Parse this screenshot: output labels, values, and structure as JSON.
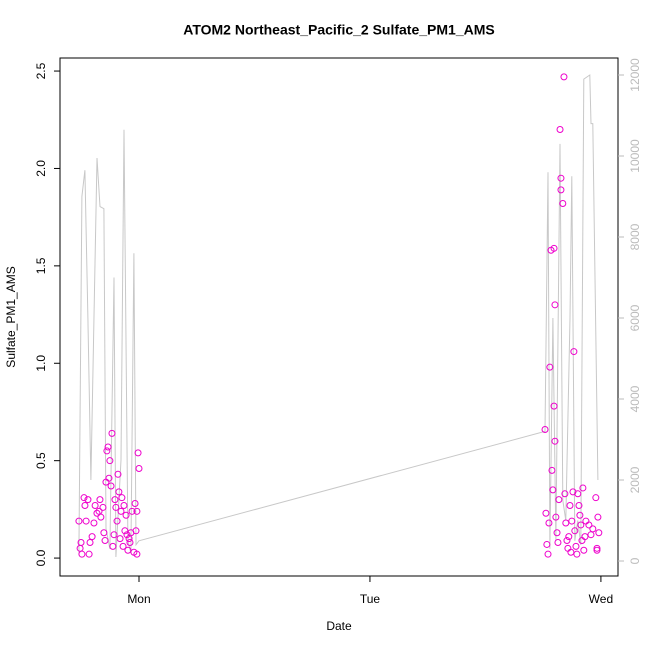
{
  "chart_data": {
    "type": "scatter",
    "title": "ATOM2 Northeast_Pacific_2 Sulfate_PM1_AMS",
    "xlabel": "Date",
    "ylabel": "Sulfate_PM1_AMS",
    "xlim": [
      -0.342,
      2.074
    ],
    "xticks": [
      {
        "value": 0,
        "label": "Mon"
      },
      {
        "value": 1,
        "label": "Tue"
      },
      {
        "value": 2,
        "label": "Wed"
      }
    ],
    "ylim": [
      -0.092,
      2.567
    ],
    "yticks": [
      {
        "value": 0,
        "label": "0.0"
      },
      0.5,
      {
        "value": 1,
        "label": "1.0"
      },
      1.5,
      {
        "value": 2,
        "label": "2.0"
      },
      2.5
    ],
    "y2lim": [
      -370,
      12420
    ],
    "y2ticks": [
      0,
      2000,
      4000,
      6000,
      8000,
      10000,
      12000
    ],
    "series": [
      {
        "type": "line",
        "axis": "y2",
        "color": "#c8c8c8",
        "x": [
          -0.26,
          -0.247,
          -0.234,
          -0.221,
          -0.208,
          -0.182,
          -0.169,
          -0.152,
          -0.143,
          -0.126,
          -0.108,
          -0.1,
          -0.078,
          -0.065,
          -0.048,
          -0.035,
          -0.022,
          -0.013,
          0.0,
          1.758,
          1.771,
          1.779,
          1.792,
          1.805,
          1.823,
          1.835,
          1.848,
          1.866,
          1.874,
          1.887,
          1.9,
          1.913,
          1.926,
          1.952,
          1.957,
          1.965,
          1.987
        ],
        "values": [
          150,
          9000,
          9650,
          6000,
          2000,
          9950,
          8750,
          8700,
          800,
          300,
          7000,
          100,
          2500,
          10650,
          500,
          200,
          7600,
          400,
          500,
          3200,
          9600,
          300,
          6000,
          500,
          10300,
          1500,
          1000,
          6000,
          9500,
          500,
          1000,
          400,
          11900,
          12000,
          10800,
          10800,
          2000
        ]
      },
      {
        "type": "scatter",
        "color": "#ee00cc",
        "x": [
          -0.26,
          -0.255,
          -0.251,
          -0.247,
          -0.238,
          -0.234,
          -0.229,
          -0.221,
          -0.216,
          -0.212,
          -0.203,
          -0.195,
          -0.19,
          -0.182,
          -0.173,
          -0.169,
          -0.165,
          -0.156,
          -0.152,
          -0.147,
          -0.143,
          -0.139,
          -0.134,
          -0.13,
          -0.126,
          -0.121,
          -0.117,
          -0.113,
          -0.108,
          -0.104,
          -0.1,
          -0.095,
          -0.091,
          -0.087,
          -0.082,
          -0.078,
          -0.074,
          -0.069,
          -0.065,
          -0.061,
          -0.056,
          -0.052,
          -0.048,
          -0.043,
          -0.039,
          -0.035,
          -0.03,
          -0.022,
          -0.017,
          -0.013,
          -0.009,
          -0.004,
          0.0,
          -0.009,
          1.758,
          1.762,
          1.766,
          1.771,
          1.775,
          1.779,
          1.784,
          1.788,
          1.792,
          1.797,
          1.801,
          1.797,
          1.801,
          1.805,
          1.81,
          1.814,
          1.818,
          1.823,
          1.827,
          1.827,
          1.835,
          1.84,
          1.844,
          1.848,
          1.853,
          1.857,
          1.861,
          1.866,
          1.87,
          1.874,
          1.879,
          1.883,
          1.887,
          1.892,
          1.896,
          1.9,
          1.905,
          1.909,
          1.913,
          1.922,
          1.935,
          1.948,
          1.957,
          1.965,
          1.978,
          1.983,
          1.987,
          1.991,
          1.983,
          1.926,
          1.918,
          1.931
        ],
        "values": [
          0.19,
          0.05,
          0.08,
          0.02,
          0.31,
          0.27,
          0.19,
          0.3,
          0.02,
          0.08,
          0.11,
          0.18,
          0.27,
          0.23,
          0.24,
          0.3,
          0.21,
          0.26,
          0.13,
          0.09,
          0.39,
          0.55,
          0.57,
          0.41,
          0.5,
          0.37,
          0.64,
          0.06,
          0.12,
          0.3,
          0.26,
          0.19,
          0.43,
          0.34,
          0.1,
          0.24,
          0.31,
          0.06,
          0.27,
          0.14,
          0.22,
          0.12,
          0.04,
          0.1,
          0.08,
          0.13,
          0.24,
          0.03,
          0.28,
          0.14,
          0.02,
          0.54,
          0.46,
          0.24,
          0.66,
          0.23,
          0.07,
          0.02,
          0.18,
          0.98,
          1.58,
          0.45,
          0.35,
          1.59,
          0.6,
          0.78,
          1.3,
          0.21,
          0.13,
          0.08,
          0.3,
          2.2,
          1.95,
          1.89,
          1.82,
          2.47,
          0.33,
          0.18,
          0.09,
          0.05,
          0.11,
          0.27,
          0.03,
          0.19,
          0.34,
          1.06,
          0.14,
          0.06,
          0.02,
          0.33,
          0.27,
          0.22,
          0.17,
          0.36,
          0.19,
          0.17,
          0.12,
          0.15,
          0.31,
          0.05,
          0.21,
          0.13,
          0.04,
          0.04,
          0.09,
          0.11
        ]
      }
    ]
  }
}
